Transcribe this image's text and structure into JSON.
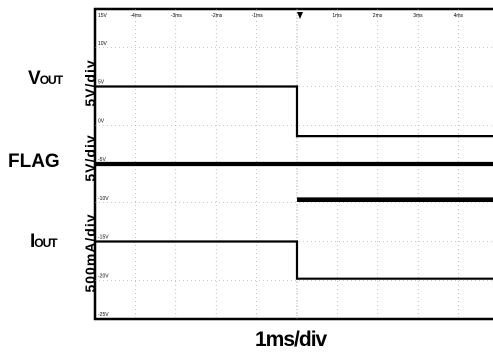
{
  "labels": {
    "v_main": "V",
    "v_sub": "OUT",
    "flag": "FLAG",
    "i_main": "I",
    "i_sub": "OUT",
    "scale_v": "5V/div",
    "scale_flag": "5V/div",
    "scale_i": "500mA/div",
    "x_axis": "1ms/div"
  },
  "chart_data": {
    "type": "line",
    "title": "",
    "xlabel": "1ms/div",
    "time_ticks": [
      "-4ms",
      "-3ms",
      "-2ms",
      "-1ms",
      "0",
      "1ms",
      "2ms",
      "3ms",
      "4ms"
    ],
    "volt_ticks": [
      "15V",
      "10V",
      "5V",
      "0V",
      "-5V",
      "-10V",
      "-15V",
      "-20V",
      "-25V"
    ],
    "xlim": [
      -5,
      5
    ],
    "ylim": [
      -25,
      15
    ],
    "trigger_time_ms": 0,
    "series": [
      {
        "name": "VOUT",
        "x": [
          -5,
          0,
          0,
          5
        ],
        "y": [
          5,
          5,
          -1.4,
          -1.4
        ]
      },
      {
        "name": "FLAG",
        "x": [
          -5,
          5
        ],
        "y": [
          -5,
          -5
        ]
      },
      {
        "name": "FLAG",
        "x": [
          0,
          5
        ],
        "y": [
          -9.6,
          -9.6
        ]
      },
      {
        "name": "IOUT",
        "x": [
          -5,
          0,
          0,
          5
        ],
        "y": [
          -15,
          -15,
          -19.8,
          -19.8
        ]
      }
    ],
    "grid": true,
    "colors": {
      "trace": "#000000",
      "grid": "#9a9a9a"
    }
  }
}
